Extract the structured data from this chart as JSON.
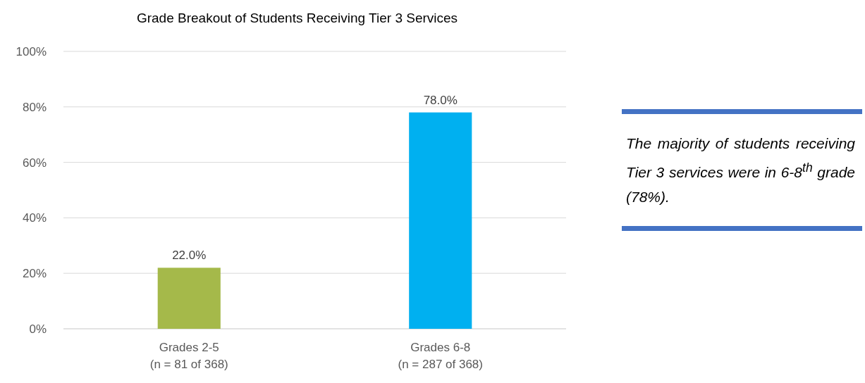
{
  "chart_data": {
    "type": "bar",
    "title": "Grade Breakout of Students Receiving Tier 3 Services",
    "categories": [
      "Grades 2-5\n(n = 81 of 368)",
      "Grades 6-8\n(n = 287 of 368)"
    ],
    "values": [
      22.0,
      78.0
    ],
    "colors": [
      "#a5b94a",
      "#00b0f0"
    ],
    "value_labels": [
      "22.0%",
      "78.0%"
    ],
    "ylim": [
      0,
      100
    ],
    "yticks": [
      {
        "value": 0,
        "label": "0%"
      },
      {
        "value": 20,
        "label": "20%"
      },
      {
        "value": 40,
        "label": "40%"
      },
      {
        "value": 60,
        "label": "60%"
      },
      {
        "value": 80,
        "label": "80%"
      },
      {
        "value": 100,
        "label": "100%"
      }
    ],
    "grid": "y",
    "annotations": [
      "The majority of students receiving Tier 3 services were in 6-8$^{th}$ grade (78%)."
    ]
  }
}
